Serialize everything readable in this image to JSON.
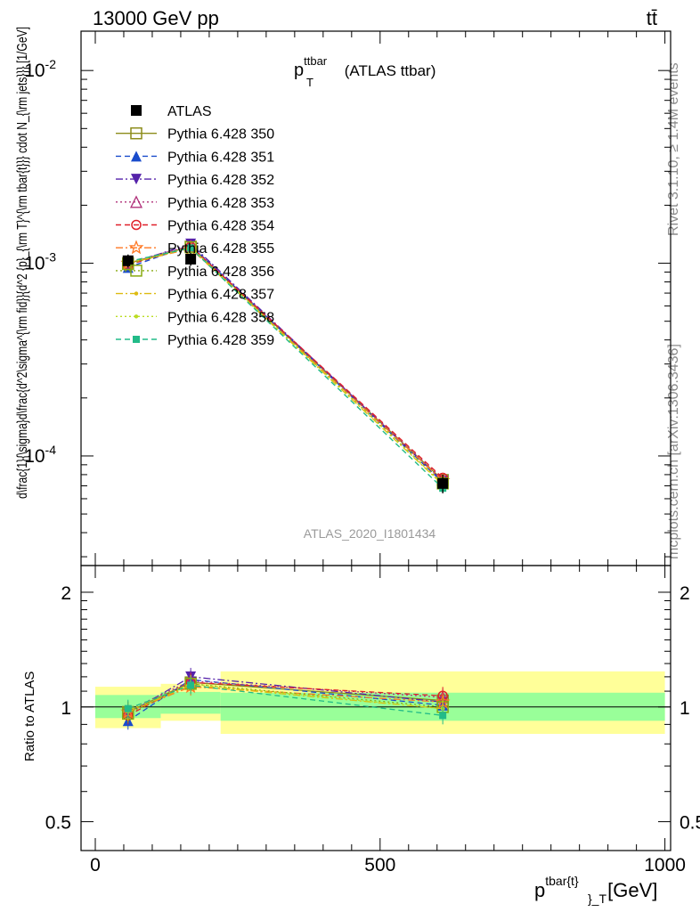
{
  "header": {
    "energy": "13000 GeV pp",
    "process": "tt̄",
    "analysis_id": "ATLAS_2020_I1801434",
    "side_rivet": "Rivet 3.1.10, ≥ 1.4M events",
    "side_mcplots": "mcplots.cern.ch [arXiv:1306.3436]"
  },
  "main": {
    "title_base": "p",
    "title_sup": "ttbar",
    "title_sub": "T",
    "title_rest": " (ATLAS ttbar)",
    "ylabel": "d\\frac{1}{\\sigma}d\\frac{d^2\\sigma^{\\rm fid}}{d^2 {p}_{\\rm T}^{\\rm tbar{t}}} cdot N_{\\rm jets}}} [1/GeV]"
  },
  "ratio": {
    "ylabel": "Ratio to ATLAS",
    "tick_labels": [
      "2",
      "1",
      "0.5"
    ]
  },
  "xaxis": {
    "label_base": "p",
    "label_sup": "tbar{t}",
    "label_sub": "}_T",
    "label_unit": " [GeV]",
    "tick_labels": [
      "0",
      "500",
      "1000"
    ]
  },
  "colors": {
    "band_inner": "#99ff99",
    "band_outer": "#ffff99",
    "data": "#000000"
  },
  "chart_data": [
    {
      "type": "line",
      "panel": "main",
      "x_scale": "linear",
      "y_scale": "log",
      "xlim": [
        -25,
        1010
      ],
      "ylim": [
        2.7e-05,
        0.016
      ],
      "ytick_labels": [
        "10^{-2}",
        "10^{-3}",
        "10^{-4}"
      ],
      "legend_position": "top-left",
      "x_bin_edges": [
        0,
        115,
        220,
        1000
      ],
      "x": [
        57.5,
        167.5,
        610
      ],
      "data": {
        "name": "ATLAS",
        "values": [
          0.00103,
          0.00105,
          7.2e-05
        ],
        "errors": [
          8e-05,
          8e-05,
          8e-06
        ],
        "marker": "filled-square",
        "color": "#000000"
      },
      "series": [
        {
          "name": "Pythia 6.428 350",
          "values": [
            0.001,
            0.00122,
            7.5e-05
          ],
          "color": "#8c8c1a",
          "marker": "open-square",
          "dash": "solid"
        },
        {
          "name": "Pythia 6.428 351",
          "values": [
            0.00095,
            0.00124,
            7.3e-05
          ],
          "color": "#1a4ccc",
          "marker": "filled-triangle-up",
          "dash": "dashed"
        },
        {
          "name": "Pythia 6.428 352",
          "values": [
            0.00099,
            0.00126,
            7.4e-05
          ],
          "color": "#5522aa",
          "marker": "filled-triangle-down",
          "dash": "dashdot"
        },
        {
          "name": "Pythia 6.428 353",
          "values": [
            0.00101,
            0.00123,
            7.6e-05
          ],
          "color": "#b0307a",
          "marker": "open-triangle-up",
          "dash": "dotted"
        },
        {
          "name": "Pythia 6.428 354",
          "values": [
            0.00098,
            0.00122,
            7.7e-05
          ],
          "color": "#e0202a",
          "marker": "open-circle",
          "dash": "dashed"
        },
        {
          "name": "Pythia 6.428 355",
          "values": [
            0.001,
            0.00119,
            7.45e-05
          ],
          "color": "#ff7722",
          "marker": "open-star",
          "dash": "dashdot"
        },
        {
          "name": "Pythia 6.428 356",
          "values": [
            0.00099,
            0.00121,
            7.2e-05
          ],
          "color": "#88aa11",
          "marker": "open-square",
          "dash": "dotted"
        },
        {
          "name": "Pythia 6.428 357",
          "values": [
            0.001,
            0.0012,
            7.1e-05
          ],
          "color": "#ddbb11",
          "marker": "small-dot",
          "dash": "dashdot"
        },
        {
          "name": "Pythia 6.428 358",
          "values": [
            0.00101,
            0.00121,
            7.15e-05
          ],
          "color": "#bbdd22",
          "marker": "small-dot",
          "dash": "dotted"
        },
        {
          "name": "Pythia 6.428 359",
          "values": [
            0.00102,
            0.0012,
            6.8e-05
          ],
          "color": "#22bb88",
          "marker": "filled-square-small",
          "dash": "dashed"
        }
      ]
    },
    {
      "type": "line",
      "panel": "ratio",
      "y_scale": "log",
      "ylim": [
        0.42,
        2.35
      ],
      "ylabel": "Ratio to ATLAS",
      "reference_line": 1,
      "bands": [
        {
          "x_bin_edges": [
            0,
            115,
            220,
            1000
          ],
          "inner": [
            [
              0.935,
              1.075
            ],
            [
              0.96,
              1.095
            ],
            [
              0.92,
              1.09
            ]
          ],
          "outer": [
            [
              0.88,
              1.13
            ],
            [
              0.92,
              1.15
            ],
            [
              0.85,
              1.24
            ]
          ]
        }
      ],
      "x": [
        57.5,
        167.5,
        610
      ],
      "series": [
        {
          "name": "Pythia 6.428 350",
          "values": [
            0.97,
            1.16,
            1.04
          ]
        },
        {
          "name": "Pythia 6.428 351",
          "values": [
            0.92,
            1.18,
            1.01
          ]
        },
        {
          "name": "Pythia 6.428 352",
          "values": [
            0.96,
            1.2,
            1.03
          ]
        },
        {
          "name": "Pythia 6.428 353",
          "values": [
            0.98,
            1.17,
            1.06
          ]
        },
        {
          "name": "Pythia 6.428 354",
          "values": [
            0.95,
            1.16,
            1.07
          ]
        },
        {
          "name": "Pythia 6.428 355",
          "values": [
            0.97,
            1.13,
            1.03
          ]
        },
        {
          "name": "Pythia 6.428 356",
          "values": [
            0.96,
            1.15,
            1.0
          ]
        },
        {
          "name": "Pythia 6.428 357",
          "values": [
            0.97,
            1.14,
            0.99
          ]
        },
        {
          "name": "Pythia 6.428 358",
          "values": [
            0.98,
            1.15,
            0.99
          ]
        },
        {
          "name": "Pythia 6.428 359",
          "values": [
            0.99,
            1.14,
            0.95
          ]
        }
      ]
    }
  ]
}
